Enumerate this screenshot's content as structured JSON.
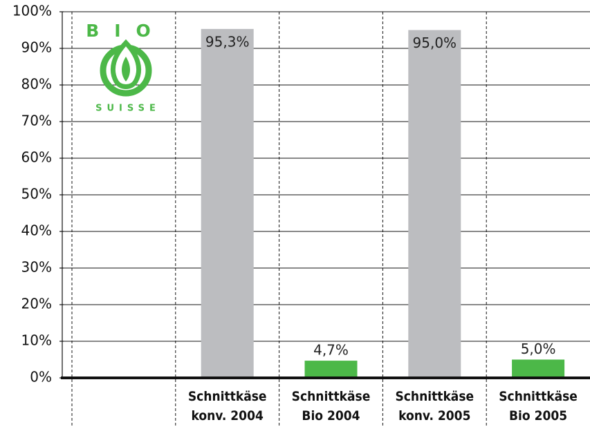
{
  "chart_data": {
    "type": "bar",
    "logo": {
      "top": "BIO",
      "bottom": "SUISSE"
    },
    "categories": [
      null,
      "Schnittkäse\nkonv. 2004",
      "Schnittkäse\nBio 2004",
      "Schnittkäse\nkonv. 2005",
      "Schnittkäse\nBio 2005"
    ],
    "values": [
      null,
      95.3,
      4.7,
      95.0,
      5.0
    ],
    "value_labels": [
      null,
      "95,3%",
      "4,7%",
      "95,0%",
      "5,0%"
    ],
    "colors": [
      null,
      "#bcbdc0",
      "#4cb848",
      "#bcbdc0",
      "#4cb848"
    ],
    "ylim": [
      0,
      100
    ],
    "yticks": [
      {
        "value": 0,
        "label": "0%"
      },
      {
        "value": 10,
        "label": "10%"
      },
      {
        "value": 20,
        "label": "20%"
      },
      {
        "value": 30,
        "label": "30%"
      },
      {
        "value": 40,
        "label": "40%"
      },
      {
        "value": 50,
        "label": "50%"
      },
      {
        "value": 60,
        "label": "60%"
      },
      {
        "value": 70,
        "label": "70%"
      },
      {
        "value": 80,
        "label": "80%"
      },
      {
        "value": 90,
        "label": "90%"
      },
      {
        "value": 100,
        "label": "100%"
      }
    ],
    "grid": true
  }
}
